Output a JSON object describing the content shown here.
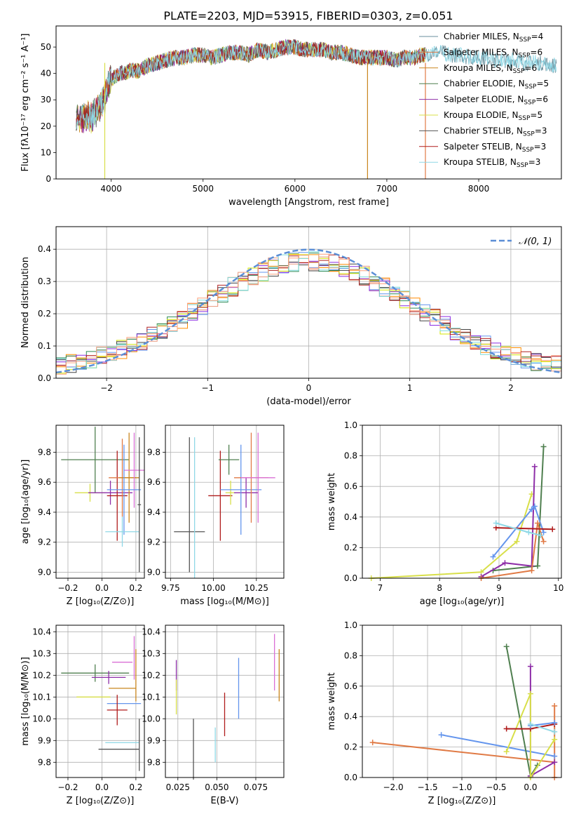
{
  "title": "PLATE=2203, MJD=53915, FIBERID=0303, z=0.051",
  "colors": [
    "#6495ed",
    "#e9967a",
    "#ff8c00",
    "#2e8b57",
    "#8a2be2",
    "#d4e600",
    "#444444",
    "#b22222",
    "#7fdbdb",
    "#ffa07a",
    "#da70d6"
  ],
  "chart_data": [
    {
      "id": "spectrum",
      "type": "line",
      "xlabel": "wavelength [Angstrom, rest frame]",
      "ylabel": "Flux [fλ10⁻¹⁷ erg cm⁻² s⁻¹ A⁻¹]",
      "xlim": [
        3400,
        8900
      ],
      "ylim": [
        0,
        58
      ],
      "xticks": [
        "4000",
        "5000",
        "6000",
        "7000",
        "8000"
      ],
      "yticks": [
        "0",
        "10",
        "20",
        "30",
        "40",
        "50"
      ],
      "legend_position": "upper-right",
      "series": [
        {
          "name": "Chabrier MILES, N_SSP=4",
          "color": "#6a8f9c"
        },
        {
          "name": "Salpeter MILES, N_SSP=6",
          "color": "#e07a45"
        },
        {
          "name": "Kroupa MILES, N_SSP=6",
          "color": "#c9861e"
        },
        {
          "name": "Chabrier ELODIE, N_SSP=5",
          "color": "#4f7f4f"
        },
        {
          "name": "Salpeter ELODIE, N_SSP=6",
          "color": "#8e2ea8"
        },
        {
          "name": "Kroupa ELODIE, N_SSP=5",
          "color": "#d8df49"
        },
        {
          "name": "Chabrier STELIB, N_SSP=3",
          "color": "#555555"
        },
        {
          "name": "Salpeter STELIB, N_SSP=3",
          "color": "#b01c1c"
        },
        {
          "name": "Kroupa STELIB, N_SSP=3",
          "color": "#8fd8e6"
        }
      ],
      "continuum": {
        "x": [
          3620,
          3700,
          3800,
          3900,
          4000,
          4100,
          4200,
          4300,
          4400,
          4500,
          4600,
          4700,
          4800,
          4900,
          5000,
          5100,
          5200,
          5300,
          5400,
          5500,
          5600,
          5700,
          5800,
          5900,
          6000,
          6100,
          6200,
          6300,
          6400,
          6500,
          6600,
          6700,
          6800,
          6900,
          7000,
          7100,
          7200,
          7300,
          7400,
          7500,
          7600,
          7700,
          7800,
          7900,
          8000,
          8100,
          8200,
          8300,
          8400,
          8500,
          8600,
          8700,
          8800
        ],
        "y": [
          22,
          23,
          24,
          28,
          38,
          40,
          41,
          41,
          43,
          44,
          45,
          46,
          46,
          47,
          47,
          46,
          47,
          48,
          48,
          47,
          49,
          48,
          49,
          50,
          50,
          49,
          49,
          49,
          48,
          48,
          47,
          46,
          46,
          46,
          46,
          45,
          46,
          46,
          47,
          48,
          48,
          47,
          47,
          46,
          46,
          46,
          45,
          45,
          45,
          44,
          44,
          44,
          43
        ]
      },
      "drops": [
        3930,
        6790,
        7420
      ]
    },
    {
      "id": "residual-histogram",
      "type": "histogram",
      "xlabel": "(data-model)/error",
      "ylabel": "Normed distribution",
      "xlim": [
        -2.5,
        2.5
      ],
      "ylim": [
        0,
        0.47
      ],
      "xticks": [
        "−2",
        "−1",
        "0",
        "1",
        "2"
      ],
      "yticks": [
        "0.0",
        "0.1",
        "0.2",
        "0.3",
        "0.4"
      ],
      "bin_width": 0.1,
      "reference": {
        "name": "𝒩(0, 1)",
        "mean": 0,
        "sigma": 1,
        "color": "#5b8ed6"
      },
      "legend_position": "upper-right",
      "grid": true
    },
    {
      "id": "age-vs-z",
      "type": "errorbar",
      "xlabel": "Z [log₁₀(Z/Z⊙)]",
      "ylabel": "age  [log₁₀(age/yr)]",
      "xlim": [
        -0.27,
        0.25
      ],
      "ylim": [
        8.96,
        9.98
      ],
      "xticks": [
        "−0.2",
        "0.0",
        "0.2"
      ],
      "yticks": [
        "9.0",
        "9.2",
        "9.4",
        "9.6",
        "9.8"
      ],
      "points": [
        {
          "x": -0.04,
          "xerr": 0.2,
          "y": 9.75,
          "yerr": 0.22,
          "color": "#4f7f4f"
        },
        {
          "x": -0.07,
          "xerr": 0.09,
          "y": 9.53,
          "yerr": 0.06,
          "color": "#d8df49"
        },
        {
          "x": 0.05,
          "xerr": 0.13,
          "y": 9.53,
          "yerr": 0.08,
          "color": "#8e2ea8"
        },
        {
          "x": 0.09,
          "xerr": 0.06,
          "y": 9.51,
          "yerr": 0.3,
          "color": "#b01c1c"
        },
        {
          "x": 0.12,
          "xerr": 0.08,
          "y": 9.63,
          "yerr": 0.26,
          "color": "#e07a45"
        },
        {
          "x": 0.16,
          "xerr": 0.06,
          "y": 9.63,
          "yerr": 0.3,
          "color": "#c9861e"
        },
        {
          "x": 0.19,
          "xerr": 0.06,
          "y": 9.68,
          "yerr": 0.25,
          "color": "#da70d6"
        },
        {
          "x": 0.13,
          "xerr": 0.1,
          "y": 9.55,
          "yerr": 0.3,
          "color": "#6495ed"
        },
        {
          "x": 0.12,
          "xerr": 0.1,
          "y": 9.27,
          "yerr": 0.1,
          "color": "#8fd8e6"
        },
        {
          "x": 0.22,
          "xerr": 0.01,
          "y": 9.45,
          "yerr": 0.45,
          "color": "#555555"
        }
      ]
    },
    {
      "id": "age-vs-mass",
      "type": "errorbar",
      "xlabel": "mass [log₁₀(M/M⊙)]",
      "ylabel": "",
      "xlim": [
        9.72,
        10.41
      ],
      "ylim": [
        8.96,
        9.98
      ],
      "xticks": [
        "9.75",
        "10.00",
        "10.25"
      ],
      "yticks": [
        "9.0",
        "9.2",
        "9.4",
        "9.6",
        "9.8"
      ],
      "points": [
        {
          "x": 9.86,
          "xerr": 0.09,
          "y": 9.27,
          "yerr": 0.0,
          "color": "#555555"
        },
        {
          "x": 9.89,
          "xerr": 0.0,
          "y": 9.43,
          "yerr": 0.47,
          "color": "#8fd8e6"
        },
        {
          "x": 9.86,
          "xerr": 0.0,
          "y": 9.45,
          "yerr": 0.45,
          "color": "#555555"
        },
        {
          "x": 10.04,
          "xerr": 0.07,
          "y": 9.51,
          "yerr": 0.3,
          "color": "#b01c1c"
        },
        {
          "x": 10.09,
          "xerr": 0.06,
          "y": 9.75,
          "yerr": 0.1,
          "color": "#4f7f4f"
        },
        {
          "x": 10.1,
          "xerr": 0.03,
          "y": 9.53,
          "yerr": 0.08,
          "color": "#d8df49"
        },
        {
          "x": 10.19,
          "xerr": 0.07,
          "y": 9.53,
          "yerr": 0.1,
          "color": "#8e2ea8"
        },
        {
          "x": 10.16,
          "xerr": 0.12,
          "y": 9.55,
          "yerr": 0.3,
          "color": "#6495ed"
        },
        {
          "x": 10.22,
          "xerr": 0.1,
          "y": 9.63,
          "yerr": 0.3,
          "color": "#e07a45"
        },
        {
          "x": 10.26,
          "xerr": 0.1,
          "y": 9.63,
          "yerr": 0.3,
          "color": "#da70d6"
        }
      ]
    },
    {
      "id": "mass-weight-vs-age",
      "type": "line",
      "xlabel": "age  [log₁₀(age/yr)]",
      "ylabel": "mass weight",
      "xlim": [
        6.7,
        10.05
      ],
      "ylim": [
        0,
        1.0
      ],
      "xticks": [
        "7",
        "8",
        "9",
        "10"
      ],
      "yticks": [
        "0.0",
        "0.2",
        "0.4",
        "0.6",
        "0.8",
        "1.0"
      ],
      "grid": true,
      "series": [
        {
          "color": "#4f7f4f",
          "x": [
            8.9,
            9.65,
            9.75
          ],
          "y": [
            0.05,
            0.08,
            0.86
          ]
        },
        {
          "color": "#d8df49",
          "x": [
            6.85,
            8.7,
            9.3,
            9.55
          ],
          "y": [
            0.0,
            0.04,
            0.24,
            0.55
          ]
        },
        {
          "color": "#8e2ea8",
          "x": [
            8.7,
            9.1,
            9.55,
            9.6
          ],
          "y": [
            0.01,
            0.1,
            0.08,
            0.73
          ]
        },
        {
          "color": "#6495ed",
          "x": [
            8.9,
            9.55,
            9.6,
            9.75
          ],
          "y": [
            0.14,
            0.45,
            0.47,
            0.3
          ]
        },
        {
          "color": "#e07a45",
          "x": [
            8.7,
            9.55,
            9.65,
            9.75
          ],
          "y": [
            0.0,
            0.05,
            0.36,
            0.24
          ]
        },
        {
          "color": "#b01c1c",
          "x": [
            8.95,
            9.9
          ],
          "y": [
            0.33,
            0.32
          ]
        },
        {
          "color": "#8fd8e6",
          "x": [
            8.95,
            9.5,
            9.7
          ],
          "y": [
            0.36,
            0.3,
            0.28
          ]
        }
      ]
    },
    {
      "id": "mass-vs-z",
      "type": "errorbar",
      "xlabel": "Z [log₁₀(Z/Z⊙)]",
      "ylabel": "mass [log₁₀(M/M⊙)]",
      "xlim": [
        -0.27,
        0.25
      ],
      "ylim": [
        9.73,
        10.43
      ],
      "xticks": [
        "−0.2",
        "0.0",
        "0.2"
      ],
      "yticks": [
        "9.8",
        "9.9",
        "10.0",
        "10.1",
        "10.2",
        "10.3",
        "10.4"
      ],
      "points": [
        {
          "x": -0.04,
          "xerr": 0.2,
          "y": 10.21,
          "yerr": 0.04,
          "color": "#4f7f4f"
        },
        {
          "x": -0.05,
          "xerr": 0.1,
          "y": 10.1,
          "yerr": 0.0,
          "color": "#d8df49"
        },
        {
          "x": 0.04,
          "xerr": 0.1,
          "y": 10.19,
          "yerr": 0.03,
          "color": "#8e2ea8"
        },
        {
          "x": 0.12,
          "xerr": 0.06,
          "y": 10.26,
          "yerr": 0.0,
          "color": "#da70d6"
        },
        {
          "x": 0.12,
          "xerr": 0.08,
          "y": 10.14,
          "yerr": 0.0,
          "color": "#c9861e"
        },
        {
          "x": 0.13,
          "xerr": 0.1,
          "y": 10.07,
          "yerr": 0.0,
          "color": "#6495ed"
        },
        {
          "x": 0.09,
          "xerr": 0.06,
          "y": 10.04,
          "yerr": 0.07,
          "color": "#b01c1c"
        },
        {
          "x": 0.12,
          "xerr": 0.1,
          "y": 9.89,
          "yerr": 0.0,
          "color": "#8fd8e6"
        },
        {
          "x": 0.1,
          "xerr": 0.12,
          "y": 9.86,
          "yerr": 0.0,
          "color": "#555555"
        },
        {
          "x": 0.19,
          "xerr": 0.0,
          "y": 10.28,
          "yerr": 0.1,
          "color": "#da70d6"
        },
        {
          "x": 0.2,
          "xerr": 0.0,
          "y": 10.2,
          "yerr": 0.12,
          "color": "#c9861e"
        },
        {
          "x": 0.22,
          "xerr": 0.0,
          "y": 9.88,
          "yerr": 0.12,
          "color": "#555555"
        }
      ]
    },
    {
      "id": "mass-vs-ebv",
      "type": "errorbar",
      "xlabel": "E(B-V)",
      "ylabel": "",
      "xlim": [
        0.017,
        0.093
      ],
      "ylim": [
        9.73,
        10.43
      ],
      "xticks": [
        "0.025",
        "0.050",
        "0.075"
      ],
      "yticks": [
        "9.8",
        "9.9",
        "10.0",
        "10.1",
        "10.2",
        "10.3",
        "10.4"
      ],
      "points": [
        {
          "x": 0.024,
          "xerr": 0,
          "y": 10.2,
          "yerr": 0.07,
          "color": "#8e2ea8"
        },
        {
          "x": 0.024,
          "xerr": 0,
          "y": 10.1,
          "yerr": 0.08,
          "color": "#d8df49"
        },
        {
          "x": 0.035,
          "xerr": 0,
          "y": 9.86,
          "yerr": 0.14,
          "color": "#555555"
        },
        {
          "x": 0.049,
          "xerr": 0,
          "y": 9.88,
          "yerr": 0.08,
          "color": "#8fd8e6"
        },
        {
          "x": 0.055,
          "xerr": 0,
          "y": 10.02,
          "yerr": 0.1,
          "color": "#b01c1c"
        },
        {
          "x": 0.064,
          "xerr": 0,
          "y": 10.14,
          "yerr": 0.14,
          "color": "#6495ed"
        },
        {
          "x": 0.087,
          "xerr": 0,
          "y": 10.26,
          "yerr": 0.13,
          "color": "#da70d6"
        },
        {
          "x": 0.09,
          "xerr": 0,
          "y": 10.2,
          "yerr": 0.12,
          "color": "#c9861e"
        }
      ]
    },
    {
      "id": "mass-weight-vs-z",
      "type": "line",
      "xlabel": "Z [log₁₀(Z/Z⊙)]",
      "ylabel": "mass weight",
      "xlim": [
        -2.45,
        0.45
      ],
      "ylim": [
        0,
        1.0
      ],
      "xticks": [
        "−2.0",
        "−1.5",
        "−1.0",
        "−0.5",
        "0.0"
      ],
      "yticks": [
        "0.0",
        "0.2",
        "0.4",
        "0.6",
        "0.8",
        "1.0"
      ],
      "grid": true,
      "series": [
        {
          "color": "#e07a45",
          "x": [
            -2.3,
            0.35
          ],
          "y": [
            0.23,
            0.1
          ]
        },
        {
          "color": "#e07a45",
          "x": [
            0.35,
            0.35
          ],
          "y": [
            0.0,
            0.47
          ]
        },
        {
          "color": "#6495ed",
          "x": [
            -1.3,
            0.35
          ],
          "y": [
            0.28,
            0.14
          ]
        },
        {
          "color": "#4f7f4f",
          "x": [
            -0.35,
            0.0,
            0.1
          ],
          "y": [
            0.86,
            0.01,
            0.08
          ]
        },
        {
          "color": "#8e2ea8",
          "x": [
            0.0,
            0.0,
            0.35
          ],
          "y": [
            0.73,
            0.01,
            0.1
          ]
        },
        {
          "color": "#d8df49",
          "x": [
            -0.35,
            0.0,
            0.0,
            0.35
          ],
          "y": [
            0.17,
            0.55,
            0.0,
            0.25
          ]
        },
        {
          "color": "#b01c1c",
          "x": [
            -0.35,
            0.0,
            0.35
          ],
          "y": [
            0.32,
            0.32,
            0.35
          ]
        },
        {
          "color": "#6495ed",
          "x": [
            0.0,
            0.35
          ],
          "y": [
            0.34,
            0.36
          ]
        },
        {
          "color": "#8fd8e6",
          "x": [
            0.0,
            0.35
          ],
          "y": [
            0.35,
            0.3
          ]
        }
      ]
    }
  ]
}
